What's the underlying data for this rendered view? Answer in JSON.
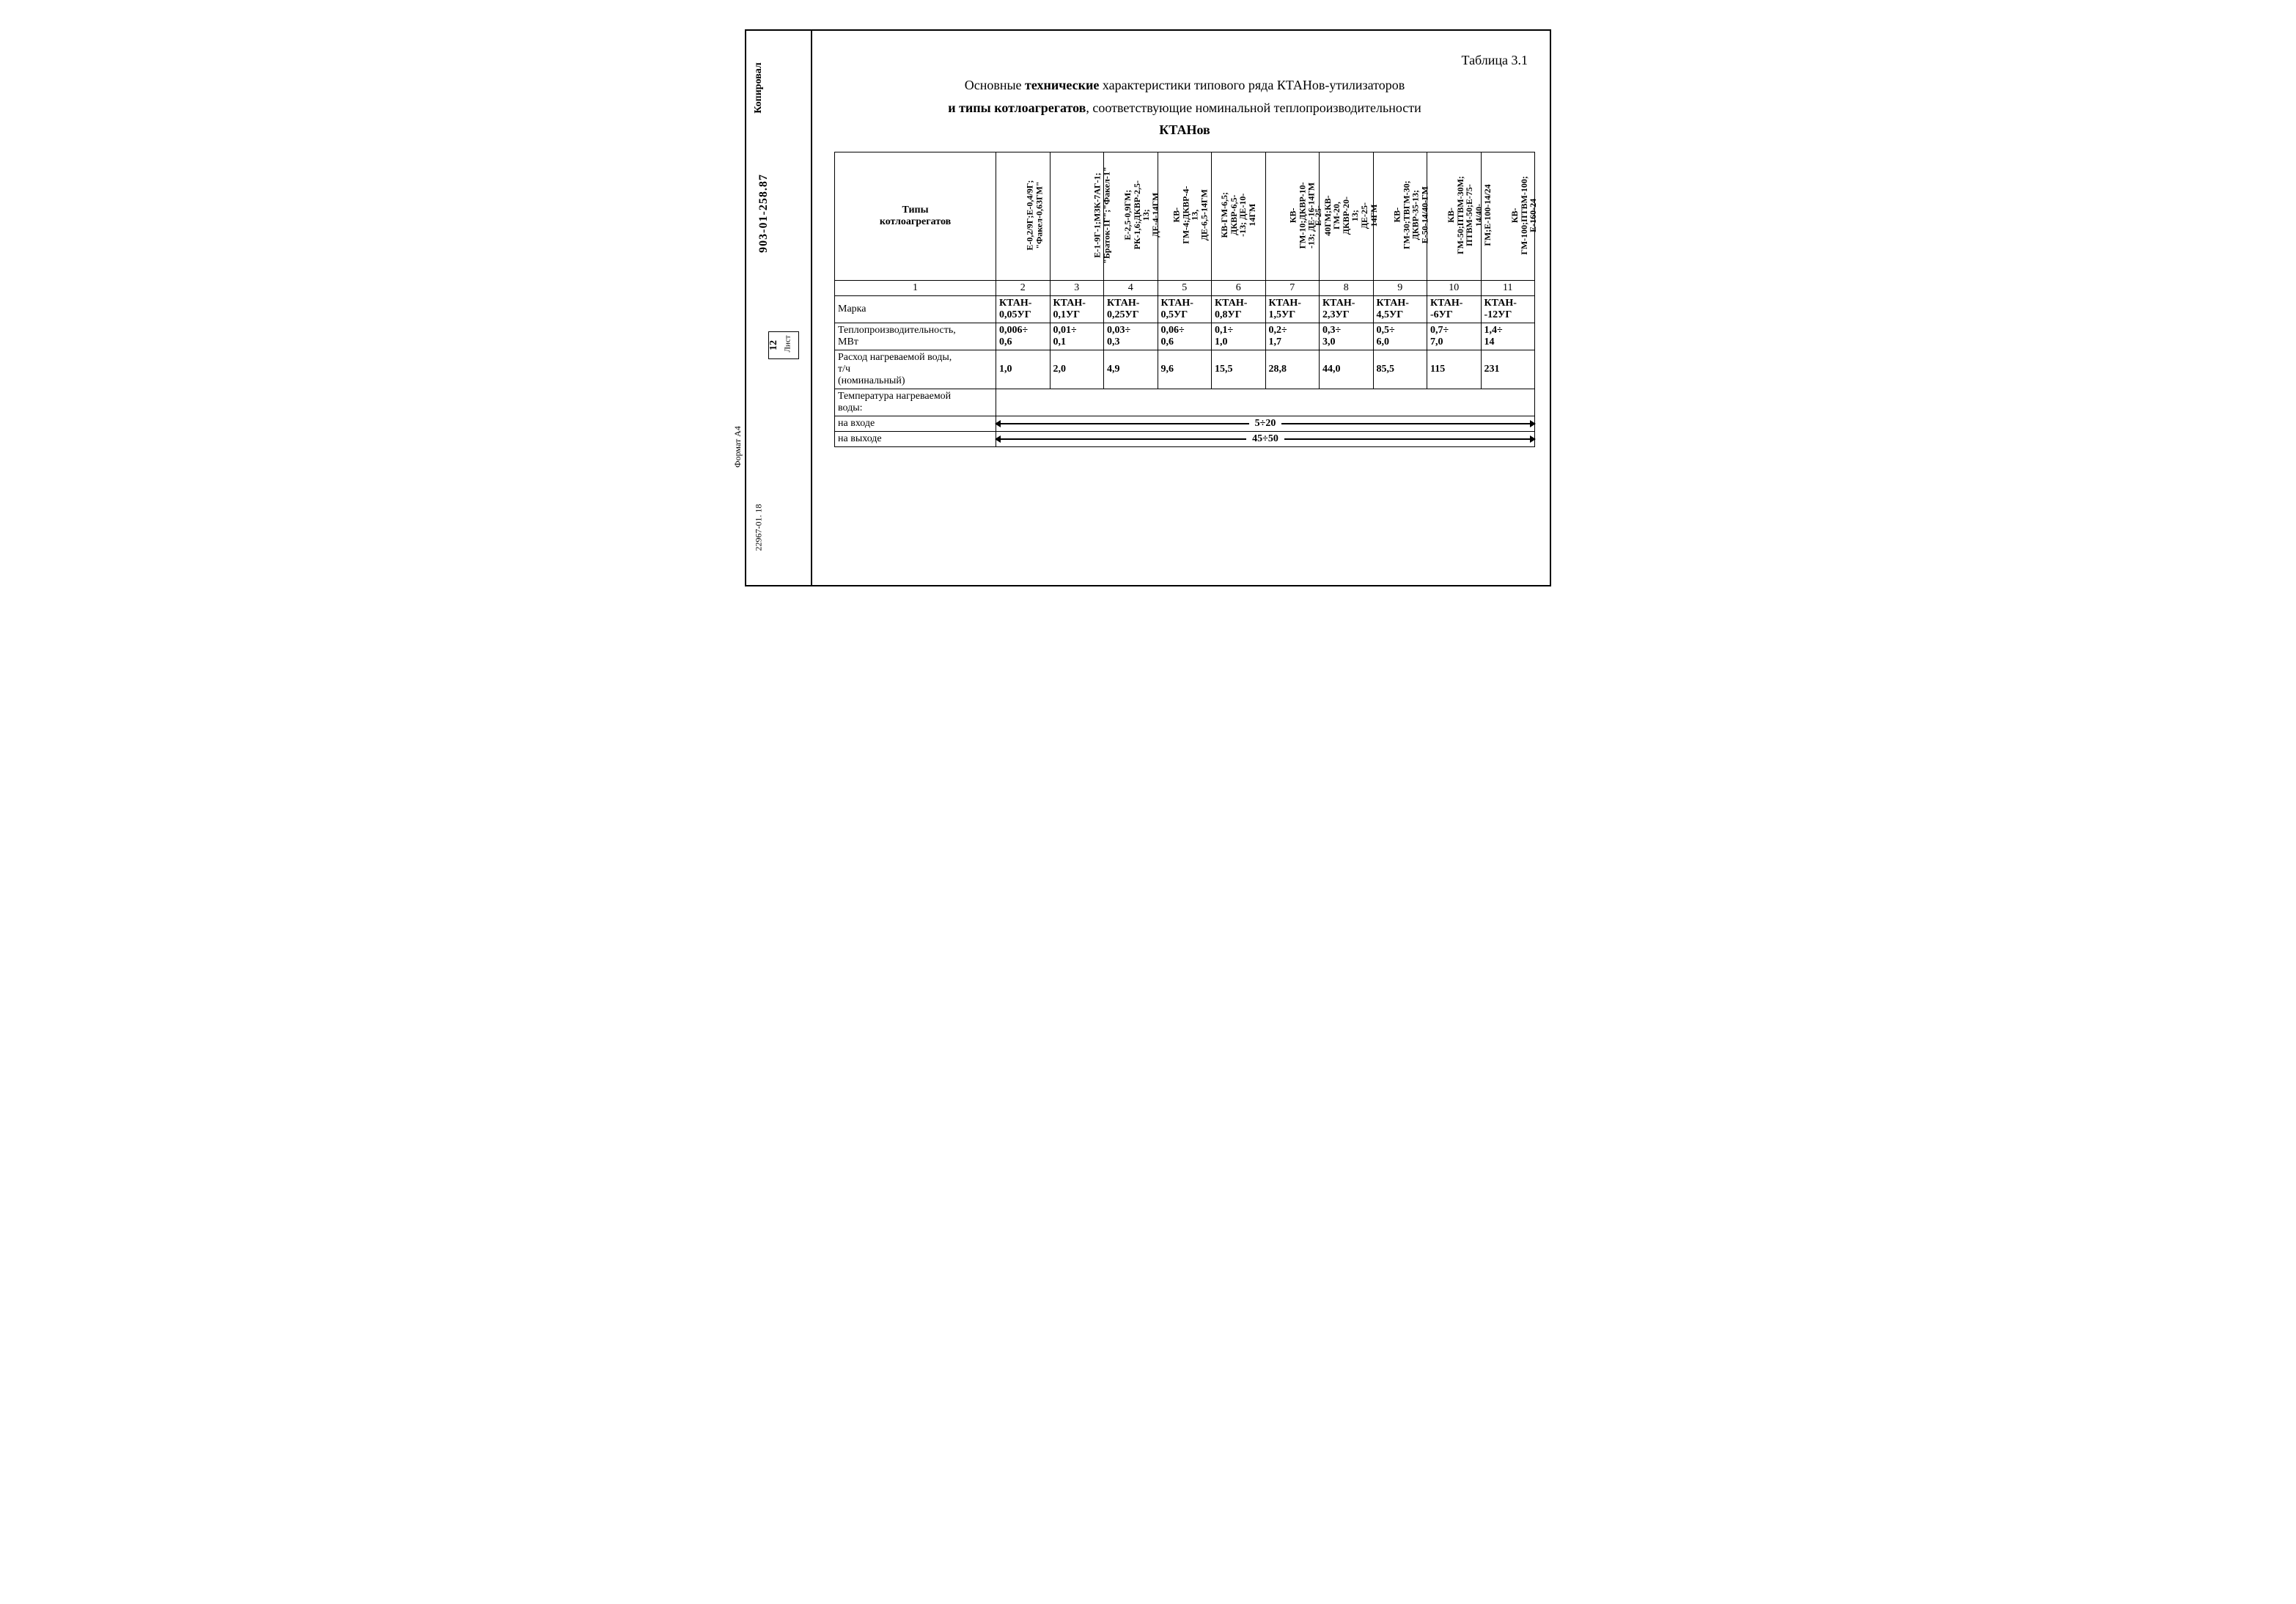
{
  "meta": {
    "doc_number": "903-01-258.87",
    "kopirovan": "Копировал",
    "list_label": "Лист",
    "list_number": "12",
    "format_label": "Формат А4",
    "extra_code": "22967-01. 18"
  },
  "table_number": "Таблица 3.1",
  "title": {
    "line1_pre": "Основные ",
    "line1_bold": "технические",
    "line1_post": " характеристики типового ряда КТАНов-утилизаторов",
    "line2_pre": "и типы котлоагрегатов",
    "line2_post": ", соответствующие номинальной теплопроизводительности",
    "line3": "КТАНов"
  },
  "header": {
    "row_label": "Типы\nкотлоагрегатов",
    "cols": [
      "Е-0,2/9Г;Е-0,4/9Г;\n\"Факел-0,63ГМ\"",
      "Е-1-9Г-1;МЗК-7АГ-1;\n\"Браток-1Г\";\"Факел-1\"",
      "Е-2,5-0,9ГМ;\nРК-1,6;ДКВР-2,5-13;\nДЕ-4-14ГМ",
      "КВ-ГМ-4;ДКВР-4-13,\nДЕ-6,5-14ГМ",
      "КВ-ГМ-6,5; ДКВР-6,5-\n-13; ДЕ-10-14ГМ",
      "КВ-ГМ-10;ДКВР-10-\n-13; ДЕ-16-14ГМ",
      "Е-25-40ГМ;КВ-ГМ-20,\nДКВР-20-13;\nДЕ-25-14ГМ",
      "КВ-ГМ-30;ТВГМ-30;\nДКВР-35-13;\nЕ-50-14/40-ГМ",
      "КВ-ГМ-50;ПТВМ-30М;\nПТВМ-50;Е-75-14/40-\nГМ;Е-100-14/24",
      "КВ-ГМ-100;ПТВМ-100;\nЕ-160-24"
    ],
    "numbers": [
      "1",
      "2",
      "3",
      "4",
      "5",
      "6",
      "7",
      "8",
      "9",
      "10",
      "11"
    ]
  },
  "rows": {
    "marka": {
      "label": "Марка",
      "vals": [
        "КТАН-\n0,05УГ",
        "КТАН-\n0,1УГ",
        "КТАН-\n0,25УГ",
        "КТАН-\n0,5УГ",
        "КТАН-\n0,8УГ",
        "КТАН-\n1,5УГ",
        "КТАН-\n2,3УГ",
        "КТАН-\n4,5УГ",
        "КТАН-\n-6УГ",
        "КТАН-\n-12УГ"
      ]
    },
    "teplo": {
      "label": "Теплопроизводительность,\nМВт",
      "vals": [
        "0,006÷\n0,6",
        "0,01÷\n0,1",
        "0,03÷\n0,3",
        "0,06÷\n0,6",
        "0,1÷\n1,0",
        "0,2÷\n1,7",
        "0,3÷\n3,0",
        "0,5÷\n6,0",
        "0,7÷\n7,0",
        "1,4÷\n14"
      ]
    },
    "rashod": {
      "label": "Расход нагреваемой воды,\nт/ч\n(номинальный)",
      "vals": [
        "1,0",
        "2,0",
        "4,9",
        "9,6",
        "15,5",
        "28,8",
        "44,0",
        "85,5",
        "115",
        "231"
      ]
    },
    "temp": {
      "label": "Температура нагреваемой\nводы:"
    },
    "vhod": {
      "label": "на входе",
      "range": "5÷20"
    },
    "vyhod": {
      "label": "на выходе",
      "range": "45÷50"
    }
  }
}
